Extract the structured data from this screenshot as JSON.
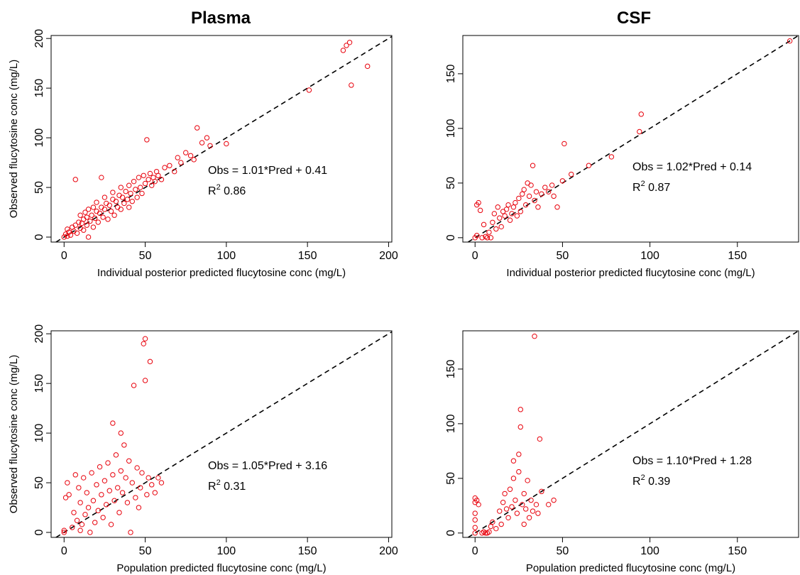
{
  "titles": {
    "plasma": "Plasma",
    "csf": "CSF"
  },
  "colors": {
    "points": "#e8000b",
    "line": "#000000"
  },
  "chart_data": [
    {
      "type": "scatter",
      "title": "",
      "xlabel": "Individual posterior predicted flucytosine conc (mg/L)",
      "ylabel": "Observed flucytosine conc (mg/L)",
      "xlim": [
        -8,
        202
      ],
      "ylim": [
        -5,
        203
      ],
      "xticks": [
        "0",
        "50",
        "100",
        "150",
        "200"
      ],
      "yticks": [
        "0",
        "50",
        "100",
        "150",
        "200"
      ],
      "annotation": {
        "eq": "Obs = 1.01*Pred + 0.41",
        "r2_label": "R",
        "r2_sup": "2",
        "r2_value": " 0.86"
      },
      "reference_line": "identity",
      "series": [
        {
          "points": [
            [
              0,
              0
            ],
            [
              1,
              3
            ],
            [
              2,
              1
            ],
            [
              2,
              8
            ],
            [
              3,
              5
            ],
            [
              4,
              2
            ],
            [
              5,
              10
            ],
            [
              6,
              6
            ],
            [
              7,
              12
            ],
            [
              7,
              58
            ],
            [
              8,
              4
            ],
            [
              9,
              15
            ],
            [
              10,
              9
            ],
            [
              10,
              22
            ],
            [
              11,
              14
            ],
            [
              12,
              7
            ],
            [
              12,
              18
            ],
            [
              13,
              25
            ],
            [
              14,
              12
            ],
            [
              14,
              20
            ],
            [
              15,
              0
            ],
            [
              15,
              28
            ],
            [
              16,
              16
            ],
            [
              17,
              22
            ],
            [
              18,
              10
            ],
            [
              18,
              30
            ],
            [
              19,
              19
            ],
            [
              20,
              26
            ],
            [
              20,
              35
            ],
            [
              21,
              15
            ],
            [
              22,
              24
            ],
            [
              23,
              30
            ],
            [
              23,
              60
            ],
            [
              24,
              20
            ],
            [
              25,
              28
            ],
            [
              25,
              40
            ],
            [
              26,
              34
            ],
            [
              27,
              18
            ],
            [
              28,
              32
            ],
            [
              29,
              26
            ],
            [
              30,
              38
            ],
            [
              30,
              45
            ],
            [
              31,
              22
            ],
            [
              32,
              36
            ],
            [
              33,
              30
            ],
            [
              34,
              42
            ],
            [
              35,
              28
            ],
            [
              35,
              50
            ],
            [
              36,
              40
            ],
            [
              37,
              34
            ],
            [
              38,
              46
            ],
            [
              39,
              38
            ],
            [
              40,
              30
            ],
            [
              40,
              52
            ],
            [
              41,
              44
            ],
            [
              42,
              36
            ],
            [
              43,
              56
            ],
            [
              44,
              48
            ],
            [
              45,
              40
            ],
            [
              46,
              60
            ],
            [
              47,
              50
            ],
            [
              48,
              44
            ],
            [
              49,
              62
            ],
            [
              50,
              54
            ],
            [
              51,
              98
            ],
            [
              52,
              58
            ],
            [
              53,
              64
            ],
            [
              54,
              52
            ],
            [
              55,
              60
            ],
            [
              56,
              56
            ],
            [
              57,
              66
            ],
            [
              58,
              62
            ],
            [
              60,
              58
            ],
            [
              62,
              70
            ],
            [
              65,
              72
            ],
            [
              68,
              66
            ],
            [
              70,
              80
            ],
            [
              72,
              75
            ],
            [
              75,
              85
            ],
            [
              78,
              82
            ],
            [
              80,
              78
            ],
            [
              82,
              110
            ],
            [
              85,
              95
            ],
            [
              88,
              100
            ],
            [
              90,
              92
            ],
            [
              100,
              94
            ],
            [
              151,
              148
            ],
            [
              172,
              188
            ],
            [
              174,
              193
            ],
            [
              176,
              196
            ],
            [
              177,
              153
            ],
            [
              187,
              172
            ]
          ]
        }
      ]
    },
    {
      "type": "scatter",
      "title": "",
      "xlabel": "Individual posterior predicted flucytosine conc (mg/L)",
      "ylabel": "",
      "xlim": [
        -7,
        185
      ],
      "ylim": [
        -4,
        185
      ],
      "xticks": [
        "0",
        "50",
        "100",
        "150"
      ],
      "yticks": [
        "0",
        "50",
        "100",
        "150"
      ],
      "annotation": {
        "eq": "Obs = 1.02*Pred + 0.14",
        "r2_label": "R",
        "r2_sup": "2",
        "r2_value": " 0.87"
      },
      "reference_line": "identity",
      "series": [
        {
          "points": [
            [
              0,
              0
            ],
            [
              1,
              2
            ],
            [
              1,
              30
            ],
            [
              2,
              32
            ],
            [
              3,
              25
            ],
            [
              4,
              0
            ],
            [
              5,
              12
            ],
            [
              6,
              1
            ],
            [
              7,
              0
            ],
            [
              8,
              5
            ],
            [
              9,
              0
            ],
            [
              10,
              14
            ],
            [
              11,
              22
            ],
            [
              12,
              8
            ],
            [
              13,
              28
            ],
            [
              14,
              18
            ],
            [
              15,
              10
            ],
            [
              16,
              24
            ],
            [
              17,
              20
            ],
            [
              18,
              26
            ],
            [
              19,
              30
            ],
            [
              20,
              16
            ],
            [
              21,
              22
            ],
            [
              22,
              28
            ],
            [
              23,
              32
            ],
            [
              24,
              20
            ],
            [
              25,
              36
            ],
            [
              26,
              24
            ],
            [
              27,
              40
            ],
            [
              28,
              44
            ],
            [
              29,
              30
            ],
            [
              30,
              50
            ],
            [
              31,
              38
            ],
            [
              32,
              48
            ],
            [
              33,
              66
            ],
            [
              34,
              34
            ],
            [
              35,
              42
            ],
            [
              36,
              28
            ],
            [
              38,
              40
            ],
            [
              40,
              46
            ],
            [
              42,
              42
            ],
            [
              44,
              48
            ],
            [
              45,
              38
            ],
            [
              47,
              28
            ],
            [
              50,
              52
            ],
            [
              51,
              86
            ],
            [
              55,
              58
            ],
            [
              65,
              66
            ],
            [
              78,
              74
            ],
            [
              94,
              97
            ],
            [
              95,
              113
            ],
            [
              180,
              180
            ]
          ]
        }
      ]
    },
    {
      "type": "scatter",
      "title": "",
      "xlabel": "Population predicted flucytosine conc (mg/L)",
      "ylabel": "Observed flucytosine conc (mg/L)",
      "xlim": [
        -8,
        202
      ],
      "ylim": [
        -5,
        203
      ],
      "xticks": [
        "0",
        "50",
        "100",
        "150",
        "200"
      ],
      "yticks": [
        "0",
        "50",
        "100",
        "150",
        "200"
      ],
      "annotation": {
        "eq": "Obs = 1.05*Pred + 3.16",
        "r2_label": "R",
        "r2_sup": "2",
        "r2_value": " 0.31"
      },
      "reference_line": "identity",
      "series": [
        {
          "points": [
            [
              0,
              0
            ],
            [
              0,
              2
            ],
            [
              1,
              35
            ],
            [
              2,
              50
            ],
            [
              3,
              38
            ],
            [
              5,
              5
            ],
            [
              6,
              20
            ],
            [
              7,
              58
            ],
            [
              8,
              12
            ],
            [
              9,
              45
            ],
            [
              10,
              2
            ],
            [
              10,
              30
            ],
            [
              11,
              8
            ],
            [
              12,
              55
            ],
            [
              13,
              18
            ],
            [
              14,
              40
            ],
            [
              15,
              25
            ],
            [
              16,
              0
            ],
            [
              17,
              60
            ],
            [
              18,
              32
            ],
            [
              19,
              10
            ],
            [
              20,
              48
            ],
            [
              21,
              22
            ],
            [
              22,
              66
            ],
            [
              23,
              38
            ],
            [
              24,
              15
            ],
            [
              25,
              52
            ],
            [
              26,
              28
            ],
            [
              27,
              70
            ],
            [
              28,
              42
            ],
            [
              29,
              8
            ],
            [
              30,
              110
            ],
            [
              30,
              58
            ],
            [
              31,
              32
            ],
            [
              32,
              78
            ],
            [
              33,
              45
            ],
            [
              34,
              20
            ],
            [
              35,
              100
            ],
            [
              35,
              62
            ],
            [
              36,
              40
            ],
            [
              37,
              88
            ],
            [
              38,
              55
            ],
            [
              39,
              30
            ],
            [
              40,
              72
            ],
            [
              41,
              0
            ],
            [
              42,
              50
            ],
            [
              43,
              148
            ],
            [
              44,
              35
            ],
            [
              45,
              65
            ],
            [
              46,
              25
            ],
            [
              47,
              45
            ],
            [
              48,
              60
            ],
            [
              49,
              190
            ],
            [
              50,
              195
            ],
            [
              50,
              153
            ],
            [
              51,
              38
            ],
            [
              52,
              55
            ],
            [
              53,
              172
            ],
            [
              54,
              48
            ],
            [
              56,
              40
            ],
            [
              58,
              55
            ],
            [
              60,
              50
            ]
          ]
        }
      ]
    },
    {
      "type": "scatter",
      "title": "",
      "xlabel": "Population predicted flucytosine conc (mg/L)",
      "ylabel": "",
      "xlim": [
        -7,
        185
      ],
      "ylim": [
        -4,
        185
      ],
      "xticks": [
        "0",
        "50",
        "100",
        "150"
      ],
      "yticks": [
        "0",
        "50",
        "100",
        "150"
      ],
      "annotation": {
        "eq": "Obs = 1.10*Pred + 1.28",
        "r2_label": "R",
        "r2_sup": "2",
        "r2_value": " 0.39"
      },
      "reference_line": "identity",
      "series": [
        {
          "points": [
            [
              0,
              0
            ],
            [
              0,
              5
            ],
            [
              0,
              12
            ],
            [
              0,
              18
            ],
            [
              0,
              28
            ],
            [
              0,
              32
            ],
            [
              1,
              30
            ],
            [
              2,
              26
            ],
            [
              4,
              0
            ],
            [
              5,
              1
            ],
            [
              6,
              0
            ],
            [
              7,
              0
            ],
            [
              8,
              1
            ],
            [
              9,
              6
            ],
            [
              10,
              10
            ],
            [
              12,
              4
            ],
            [
              14,
              20
            ],
            [
              15,
              8
            ],
            [
              16,
              28
            ],
            [
              17,
              36
            ],
            [
              18,
              22
            ],
            [
              19,
              14
            ],
            [
              20,
              40
            ],
            [
              21,
              24
            ],
            [
              22,
              50
            ],
            [
              22,
              66
            ],
            [
              23,
              30
            ],
            [
              24,
              18
            ],
            [
              25,
              56
            ],
            [
              25,
              72
            ],
            [
              26,
              97
            ],
            [
              26,
              113
            ],
            [
              27,
              26
            ],
            [
              28,
              36
            ],
            [
              28,
              8
            ],
            [
              29,
              22
            ],
            [
              30,
              48
            ],
            [
              31,
              14
            ],
            [
              32,
              30
            ],
            [
              33,
              20
            ],
            [
              34,
              180
            ],
            [
              35,
              26
            ],
            [
              36,
              18
            ],
            [
              37,
              86
            ],
            [
              38,
              38
            ],
            [
              42,
              26
            ],
            [
              45,
              30
            ]
          ]
        }
      ]
    }
  ]
}
